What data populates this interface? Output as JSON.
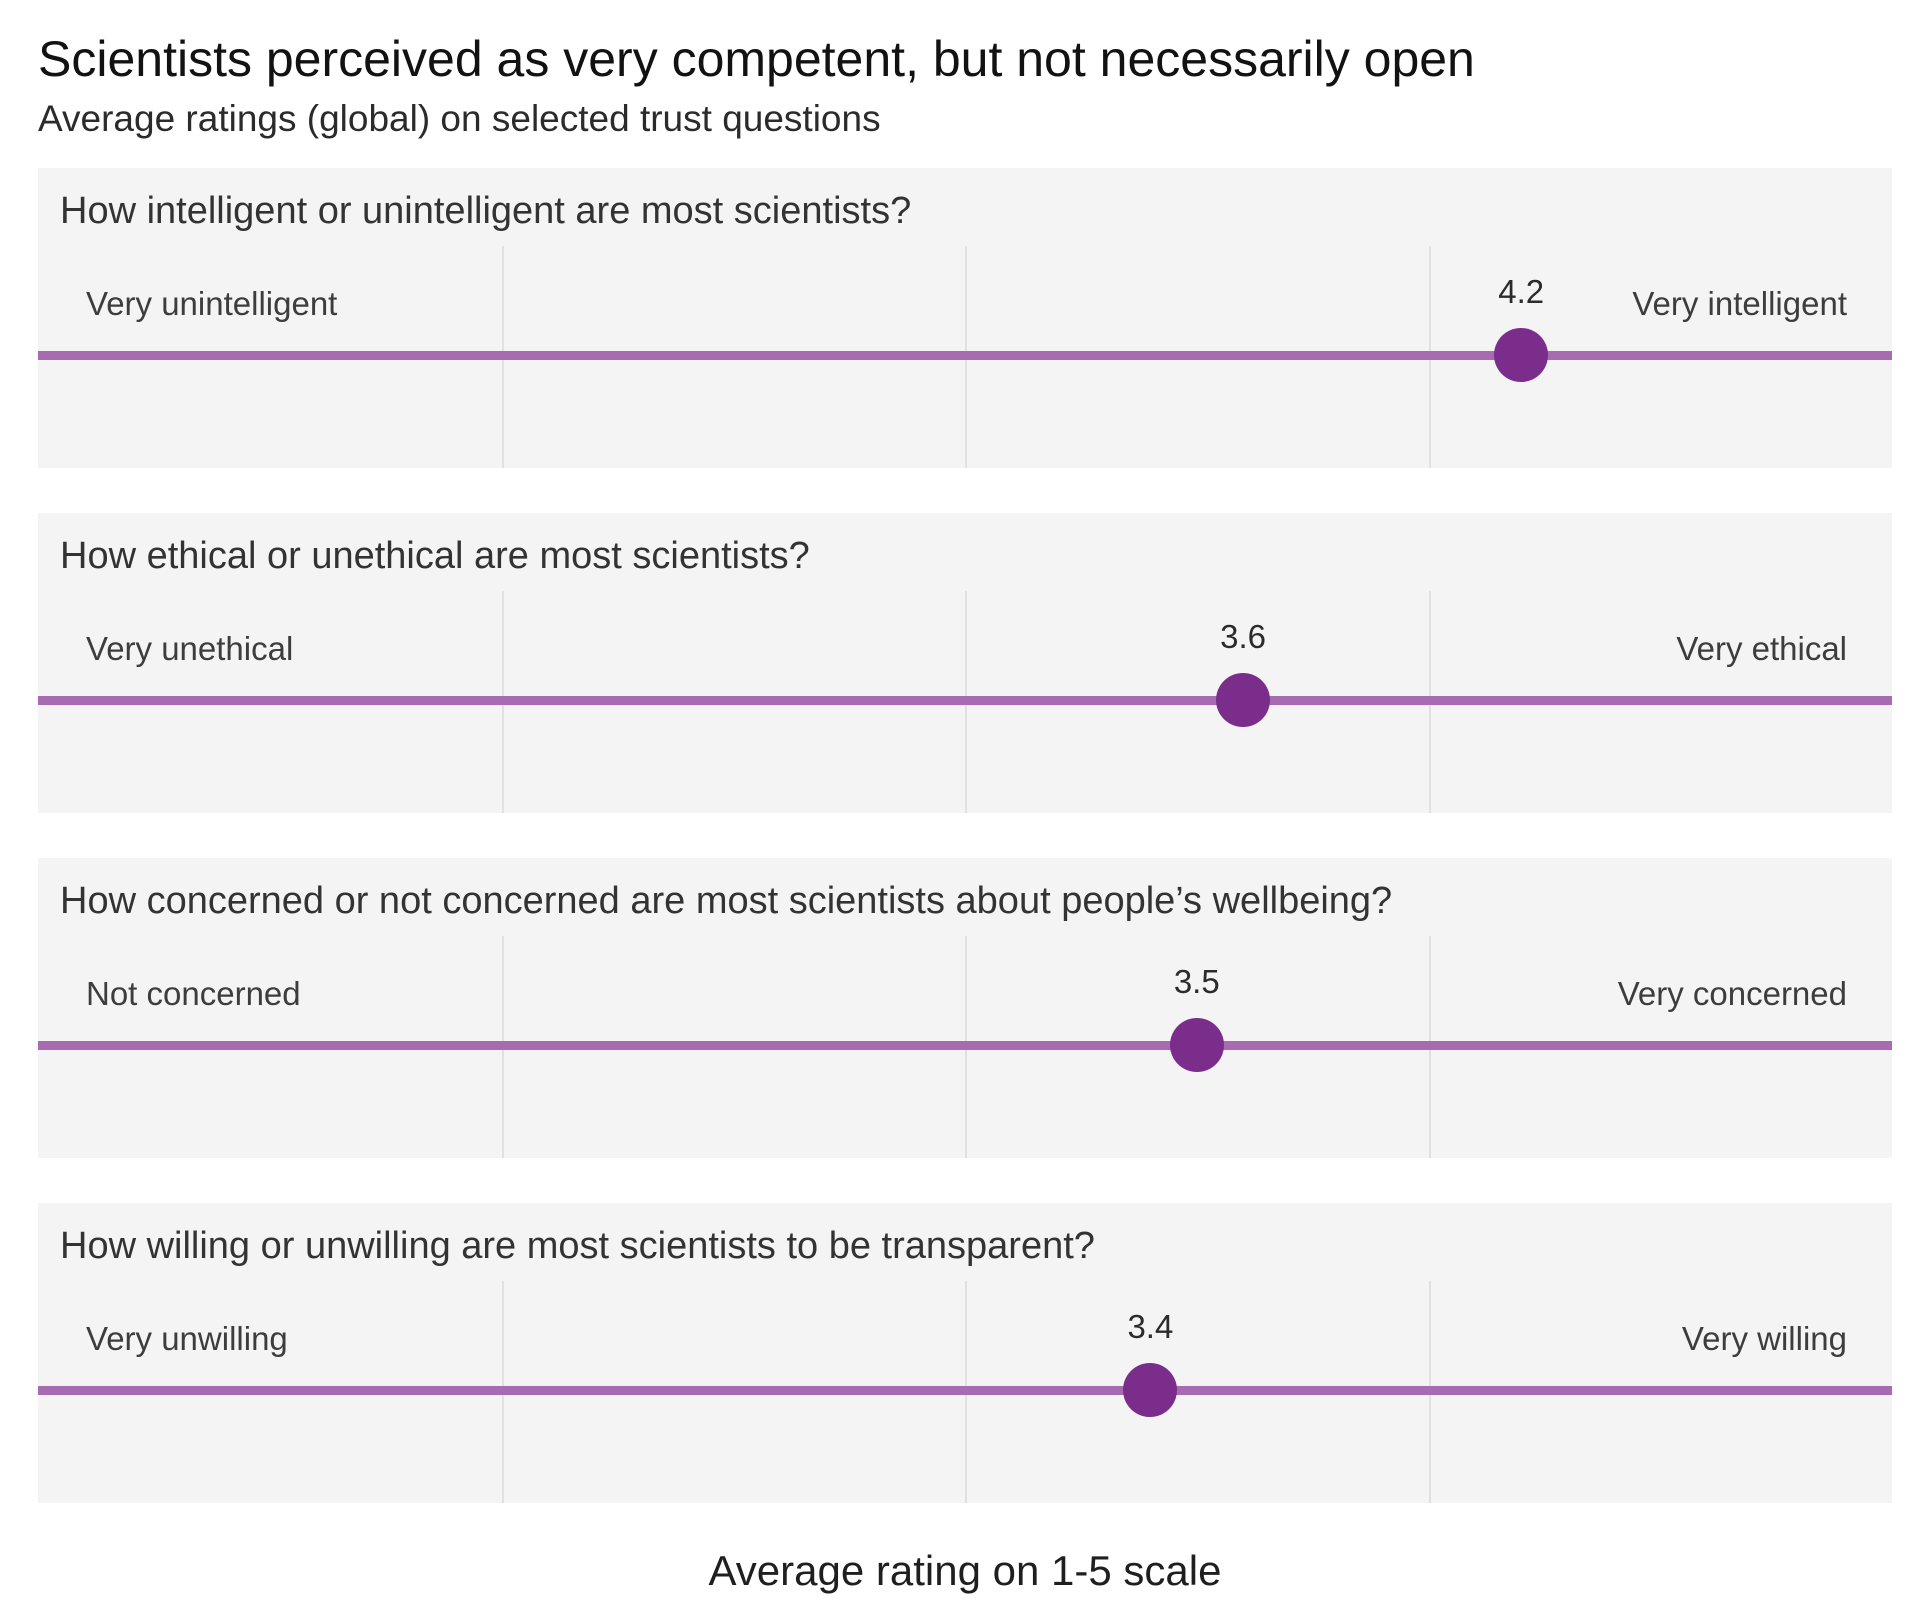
{
  "header": {
    "title": "Scientists perceived as very competent, but not necessarily open",
    "subtitle": "Average ratings (global) on selected trust questions"
  },
  "footer": {
    "axis_label": "Average rating on 1-5 scale"
  },
  "chart_data": {
    "type": "scatter",
    "title": "Scientists perceived as very competent, but not necessarily open",
    "subtitle": "Average ratings (global) on selected trust questions",
    "xlabel": "Average rating on 1-5 scale",
    "scale": {
      "min": 1,
      "max": 5
    },
    "gridlines_at": [
      2,
      3,
      4
    ],
    "legend": "none",
    "colors": {
      "dot": "#7b2d8c",
      "line": "#a76bb2",
      "panel_bg": "#f4f4f4"
    },
    "questions": [
      {
        "question": "How intelligent or unintelligent are most scientists?",
        "left_label": "Very unintelligent",
        "right_label": "Very intelligent",
        "value": 4.2,
        "value_label": "4.2"
      },
      {
        "question": "How ethical or unethical are most scientists?",
        "left_label": "Very unethical",
        "right_label": "Very ethical",
        "value": 3.6,
        "value_label": "3.6"
      },
      {
        "question": "How concerned or not concerned are most scientists about people’s wellbeing?",
        "left_label": "Not concerned",
        "right_label": "Very concerned",
        "value": 3.5,
        "value_label": "3.5"
      },
      {
        "question": "How willing or unwilling are most scientists to be transparent?",
        "left_label": "Very unwilling",
        "right_label": "Very willing",
        "value": 3.4,
        "value_label": "3.4"
      }
    ]
  }
}
